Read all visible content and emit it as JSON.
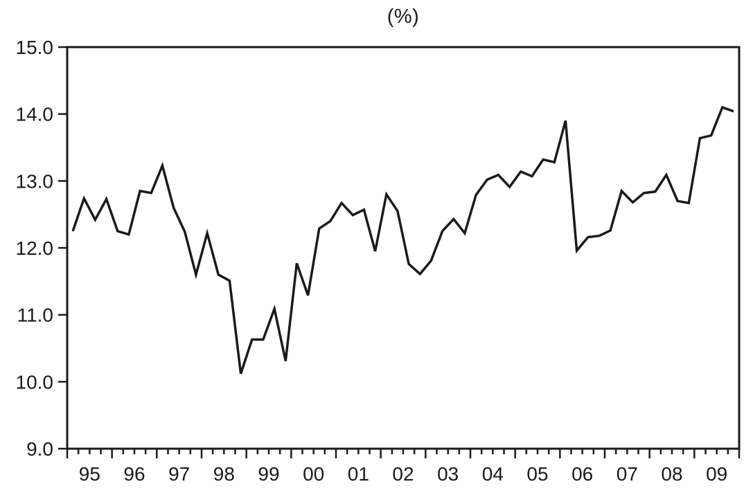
{
  "page": {
    "background_color": "#ffffff",
    "text_color": "#1a1a1a"
  },
  "chart_data": {
    "type": "line",
    "title": "(%)",
    "xlabel": "",
    "ylabel": "",
    "frequency": "quarterly",
    "grid": "off",
    "legend": "none",
    "line_color": "#1a1a1a",
    "axis_color": "#1a1a1a",
    "ylim": [
      9.0,
      15.0
    ],
    "ytick_values": [
      9,
      10,
      11,
      12,
      13,
      14,
      15
    ],
    "ytick_labels": [
      "9.0",
      "10.0",
      "11.0",
      "12.0",
      "13.0",
      "14.0",
      "15.0"
    ],
    "year_labels": [
      "95",
      "96",
      "97",
      "98",
      "99",
      "00",
      "01",
      "02",
      "03",
      "04",
      "05",
      "06",
      "07",
      "08",
      "09"
    ],
    "x": [
      "1995Q1",
      "1995Q2",
      "1995Q3",
      "1995Q4",
      "1996Q1",
      "1996Q2",
      "1996Q3",
      "1996Q4",
      "1997Q1",
      "1997Q2",
      "1997Q3",
      "1997Q4",
      "1998Q1",
      "1998Q2",
      "1998Q3",
      "1998Q4",
      "1999Q1",
      "1999Q2",
      "1999Q3",
      "1999Q4",
      "2000Q1",
      "2000Q2",
      "2000Q3",
      "2000Q4",
      "2001Q1",
      "2001Q2",
      "2001Q3",
      "2001Q4",
      "2002Q1",
      "2002Q2",
      "2002Q3",
      "2002Q4",
      "2003Q1",
      "2003Q2",
      "2003Q3",
      "2003Q4",
      "2004Q1",
      "2004Q2",
      "2004Q3",
      "2004Q4",
      "2005Q1",
      "2005Q2",
      "2005Q3",
      "2005Q4",
      "2006Q1",
      "2006Q2",
      "2006Q3",
      "2006Q4",
      "2007Q1",
      "2007Q2",
      "2007Q3",
      "2007Q4",
      "2008Q1",
      "2008Q2",
      "2008Q3",
      "2008Q4",
      "2009Q1",
      "2009Q2",
      "2009Q3",
      "2009Q4"
    ],
    "values": [
      12.25,
      12.74,
      12.42,
      12.73,
      12.25,
      12.2,
      12.85,
      12.82,
      13.23,
      12.6,
      12.24,
      11.6,
      12.22,
      11.6,
      11.51,
      10.12,
      10.63,
      10.63,
      11.09,
      10.31,
      11.77,
      11.29,
      12.29,
      12.4,
      12.67,
      12.49,
      12.57,
      11.95,
      12.8,
      12.55,
      11.76,
      11.61,
      11.81,
      12.25,
      12.43,
      12.22,
      12.79,
      13.02,
      13.09,
      12.91,
      13.14,
      13.07,
      13.32,
      13.28,
      13.9,
      11.96,
      12.16,
      12.18,
      12.26,
      12.85,
      12.68,
      12.82,
      12.84,
      13.09,
      12.7,
      12.67,
      13.64,
      13.68,
      14.1,
      14.04
    ]
  }
}
